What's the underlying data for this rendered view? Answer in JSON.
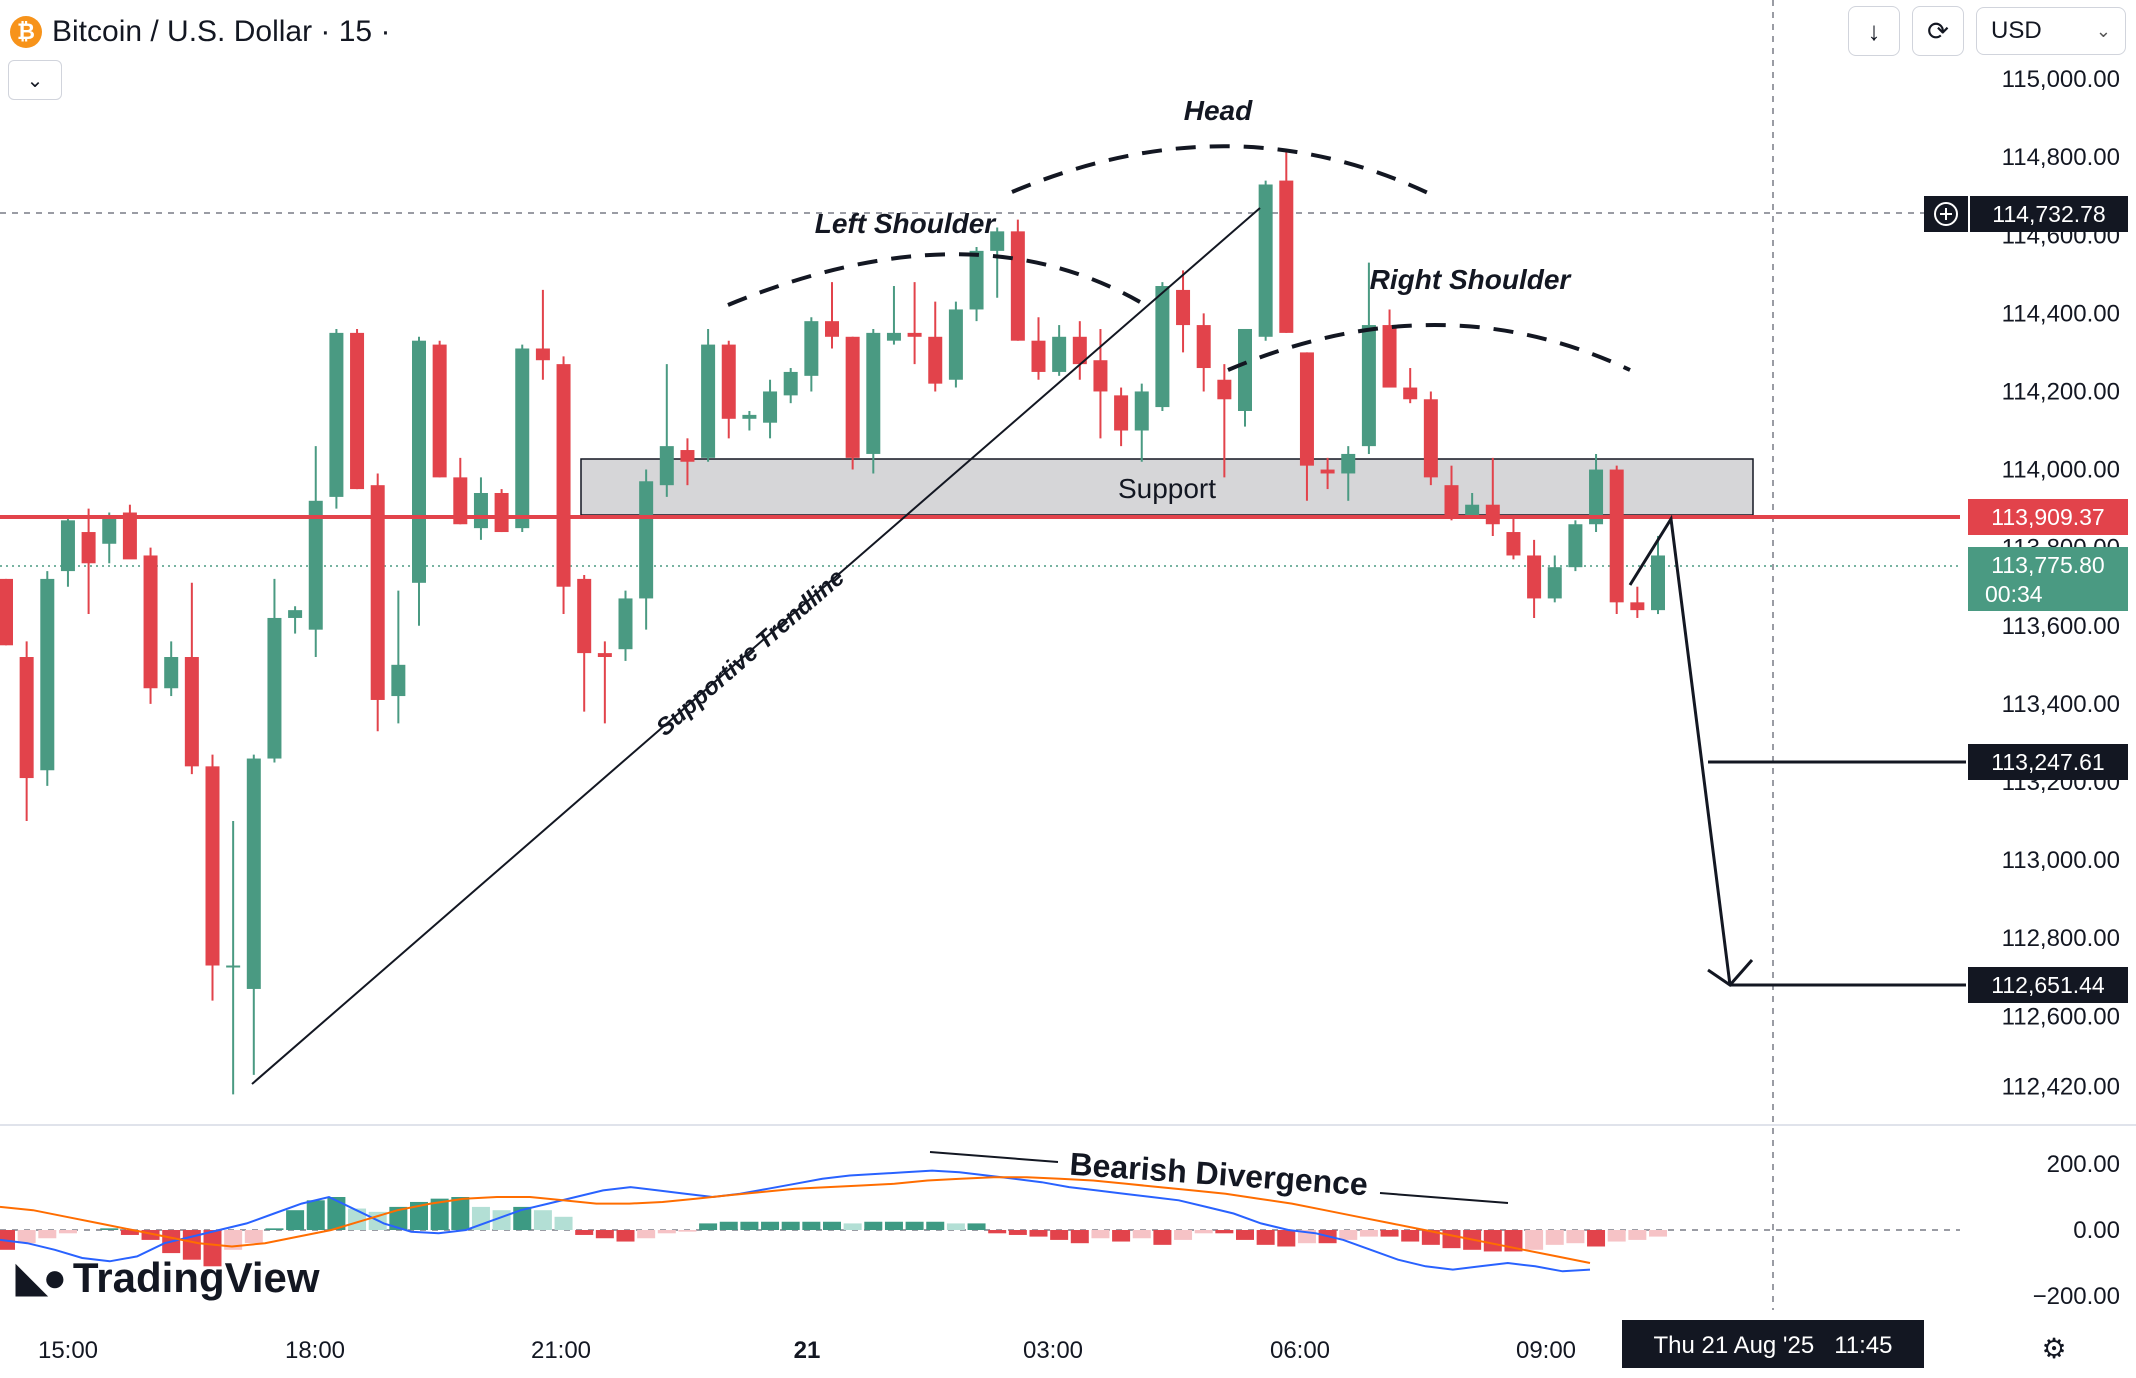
{
  "header": {
    "symbol_title": "Bitcoin / U.S. Dollar · 15 ·",
    "currency": "USD",
    "icons": [
      "bitcoin-icon",
      "chevron-down-icon",
      "arrow-down-icon",
      "refresh-icon",
      "gear-icon",
      "crosshair-plus-icon"
    ]
  },
  "logo": {
    "text": "TradingView"
  },
  "chart_data": [
    {
      "type": "candlestick",
      "title": "",
      "y_ticks": [
        "115,000.00",
        "114,800.00",
        "114,600.00",
        "114,400.00",
        "114,200.00",
        "114,000.00",
        "113,800.00",
        "113,600.00",
        "113,400.00",
        "113,200.00",
        "113,000.00",
        "112,800.00",
        "112,600.00",
        "112,420.00"
      ],
      "x_ticks": [
        "15:00",
        "18:00",
        "21:00",
        "21",
        "03:00",
        "06:00",
        "09:00"
      ],
      "ylim": [
        112360,
        115100
      ],
      "candles": [
        {
          "o": 113720,
          "h": 113720,
          "l": 113550,
          "c": 113550
        },
        {
          "o": 113520,
          "h": 113560,
          "l": 113100,
          "c": 113210
        },
        {
          "o": 113230,
          "h": 113740,
          "l": 113190,
          "c": 113720
        },
        {
          "o": 113740,
          "h": 113880,
          "l": 113700,
          "c": 113870
        },
        {
          "o": 113840,
          "h": 113900,
          "l": 113630,
          "c": 113760
        },
        {
          "o": 113810,
          "h": 113890,
          "l": 113760,
          "c": 113880
        },
        {
          "o": 113890,
          "h": 113910,
          "l": 113790,
          "c": 113770
        },
        {
          "o": 113780,
          "h": 113800,
          "l": 113400,
          "c": 113440
        },
        {
          "o": 113440,
          "h": 113560,
          "l": 113420,
          "c": 113520
        },
        {
          "o": 113520,
          "h": 113710,
          "l": 113220,
          "c": 113240
        },
        {
          "o": 113240,
          "h": 113270,
          "l": 112640,
          "c": 112730
        },
        {
          "o": 112730,
          "h": 113100,
          "l": 112400,
          "c": 112730
        },
        {
          "o": 112670,
          "h": 113270,
          "l": 112450,
          "c": 113260
        },
        {
          "o": 113260,
          "h": 113720,
          "l": 113250,
          "c": 113620
        },
        {
          "o": 113620,
          "h": 113650,
          "l": 113580,
          "c": 113640
        },
        {
          "o": 113590,
          "h": 114060,
          "l": 113520,
          "c": 113920
        },
        {
          "o": 113930,
          "h": 114360,
          "l": 113900,
          "c": 114350
        },
        {
          "o": 114350,
          "h": 114360,
          "l": 113950,
          "c": 113950
        },
        {
          "o": 113960,
          "h": 113990,
          "l": 113330,
          "c": 113410
        },
        {
          "o": 113420,
          "h": 113690,
          "l": 113350,
          "c": 113500
        },
        {
          "o": 113710,
          "h": 114340,
          "l": 113600,
          "c": 114330
        },
        {
          "o": 114320,
          "h": 114330,
          "l": 113980,
          "c": 113980
        },
        {
          "o": 113980,
          "h": 114030,
          "l": 113860,
          "c": 113860
        },
        {
          "o": 113850,
          "h": 113980,
          "l": 113820,
          "c": 113940
        },
        {
          "o": 113940,
          "h": 113950,
          "l": 113840,
          "c": 113840
        },
        {
          "o": 113850,
          "h": 114320,
          "l": 113840,
          "c": 114310
        },
        {
          "o": 114310,
          "h": 114460,
          "l": 114230,
          "c": 114280
        },
        {
          "o": 114270,
          "h": 114290,
          "l": 113630,
          "c": 113700
        },
        {
          "o": 113720,
          "h": 113730,
          "l": 113380,
          "c": 113530
        },
        {
          "o": 113530,
          "h": 113560,
          "l": 113350,
          "c": 113520
        },
        {
          "o": 113540,
          "h": 113690,
          "l": 113510,
          "c": 113670
        },
        {
          "o": 113670,
          "h": 114000,
          "l": 113590,
          "c": 113970
        },
        {
          "o": 113960,
          "h": 114270,
          "l": 113930,
          "c": 114060
        },
        {
          "o": 114050,
          "h": 114080,
          "l": 113960,
          "c": 114020
        },
        {
          "o": 114030,
          "h": 114360,
          "l": 114020,
          "c": 114320
        },
        {
          "o": 114320,
          "h": 114330,
          "l": 114080,
          "c": 114130
        },
        {
          "o": 114130,
          "h": 114150,
          "l": 114100,
          "c": 114140
        },
        {
          "o": 114120,
          "h": 114230,
          "l": 114080,
          "c": 114200
        },
        {
          "o": 114190,
          "h": 114260,
          "l": 114170,
          "c": 114250
        },
        {
          "o": 114240,
          "h": 114390,
          "l": 114200,
          "c": 114380
        },
        {
          "o": 114380,
          "h": 114480,
          "l": 114310,
          "c": 114340
        },
        {
          "o": 114340,
          "h": 114340,
          "l": 114000,
          "c": 114030
        },
        {
          "o": 114040,
          "h": 114360,
          "l": 113990,
          "c": 114350
        },
        {
          "o": 114330,
          "h": 114470,
          "l": 114320,
          "c": 114350
        },
        {
          "o": 114350,
          "h": 114480,
          "l": 114270,
          "c": 114340
        },
        {
          "o": 114340,
          "h": 114430,
          "l": 114200,
          "c": 114220
        },
        {
          "o": 114230,
          "h": 114430,
          "l": 114210,
          "c": 114410
        },
        {
          "o": 114410,
          "h": 114570,
          "l": 114380,
          "c": 114560
        },
        {
          "o": 114560,
          "h": 114620,
          "l": 114440,
          "c": 114610
        },
        {
          "o": 114610,
          "h": 114640,
          "l": 114330,
          "c": 114330
        },
        {
          "o": 114330,
          "h": 114390,
          "l": 114230,
          "c": 114250
        },
        {
          "o": 114250,
          "h": 114370,
          "l": 114240,
          "c": 114340
        },
        {
          "o": 114340,
          "h": 114380,
          "l": 114230,
          "c": 114270
        },
        {
          "o": 114280,
          "h": 114360,
          "l": 114080,
          "c": 114200
        },
        {
          "o": 114190,
          "h": 114210,
          "l": 114060,
          "c": 114100
        },
        {
          "o": 114100,
          "h": 114220,
          "l": 114020,
          "c": 114200
        },
        {
          "o": 114160,
          "h": 114480,
          "l": 114150,
          "c": 114470
        },
        {
          "o": 114460,
          "h": 114510,
          "l": 114300,
          "c": 114370
        },
        {
          "o": 114370,
          "h": 114400,
          "l": 114200,
          "c": 114260
        },
        {
          "o": 114230,
          "h": 114270,
          "l": 113980,
          "c": 114180
        },
        {
          "o": 114150,
          "h": 114350,
          "l": 114110,
          "c": 114360
        },
        {
          "o": 114340,
          "h": 114740,
          "l": 114330,
          "c": 114730
        },
        {
          "o": 114740,
          "h": 114820,
          "l": 114350,
          "c": 114350
        },
        {
          "o": 114300,
          "h": 114300,
          "l": 113920,
          "c": 114010
        },
        {
          "o": 114000,
          "h": 114030,
          "l": 113950,
          "c": 113990
        },
        {
          "o": 113990,
          "h": 114060,
          "l": 113920,
          "c": 114040
        },
        {
          "o": 114060,
          "h": 114530,
          "l": 114040,
          "c": 114370
        },
        {
          "o": 114370,
          "h": 114410,
          "l": 114210,
          "c": 114210
        },
        {
          "o": 114210,
          "h": 114260,
          "l": 114170,
          "c": 114180
        },
        {
          "o": 114180,
          "h": 114200,
          "l": 113960,
          "c": 113980
        },
        {
          "o": 113960,
          "h": 114010,
          "l": 113870,
          "c": 113880
        },
        {
          "o": 113880,
          "h": 113940,
          "l": 113880,
          "c": 113910
        },
        {
          "o": 113910,
          "h": 114030,
          "l": 113830,
          "c": 113860
        },
        {
          "o": 113840,
          "h": 113880,
          "l": 113770,
          "c": 113780
        },
        {
          "o": 113780,
          "h": 113820,
          "l": 113620,
          "c": 113670
        },
        {
          "o": 113670,
          "h": 113780,
          "l": 113660,
          "c": 113750
        },
        {
          "o": 113750,
          "h": 113870,
          "l": 113740,
          "c": 113860
        },
        {
          "o": 113860,
          "h": 114040,
          "l": 113840,
          "c": 114000
        },
        {
          "o": 114000,
          "h": 114010,
          "l": 113630,
          "c": 113660
        },
        {
          "o": 113660,
          "h": 113700,
          "l": 113620,
          "c": 113640
        },
        {
          "o": 113640,
          "h": 113830,
          "l": 113630,
          "c": 113780
        }
      ],
      "price_labels": {
        "crosshair": "114,732.78",
        "red_level": "113,909.37",
        "current_price": "113,775.80",
        "countdown": "00:34",
        "target_1": "113,247.61",
        "target_2": "112,651.44",
        "date_label": "Thu 21 Aug '25   11:45"
      },
      "annotations": {
        "head": "Head",
        "left_shoulder": "Left Shoulder",
        "right_shoulder": "Right Shoulder",
        "support": "Support",
        "trendline": "Supportive Trendline"
      },
      "colors": {
        "up": "#4a9a82",
        "down": "#e2434b",
        "accent_red": "#e2434b",
        "macd": "#2962ff",
        "signal": "#ff6d00"
      }
    },
    {
      "type": "macd",
      "y_ticks": [
        "200.00",
        "0.00",
        "−200.00"
      ],
      "ylim": [
        -250,
        250
      ],
      "annotation": "Bearish Divergence",
      "histogram": [
        -60,
        -40,
        -25,
        -10,
        0,
        5,
        -15,
        -30,
        -70,
        -90,
        -110,
        -60,
        -40,
        5,
        60,
        90,
        100,
        65,
        55,
        70,
        85,
        95,
        100,
        70,
        60,
        70,
        60,
        40,
        -15,
        -25,
        -35,
        -25,
        -10,
        -5,
        20,
        25,
        25,
        25,
        25,
        25,
        25,
        20,
        25,
        25,
        25,
        25,
        20,
        20,
        -10,
        -15,
        -20,
        -30,
        -40,
        -25,
        -35,
        -25,
        -45,
        -30,
        -10,
        -10,
        -30,
        -45,
        -50,
        -40,
        -40,
        -30,
        -20,
        -20,
        -35,
        -45,
        -55,
        -60,
        -65,
        -65,
        -60,
        -45,
        -40,
        -50,
        -35,
        -30,
        -20
      ],
      "macd": [
        -30,
        -40,
        -60,
        -85,
        -95,
        -80,
        -40,
        -20,
        0,
        20,
        50,
        80,
        100,
        60,
        20,
        -5,
        -10,
        0,
        30,
        60,
        80,
        100,
        120,
        130,
        120,
        110,
        100,
        110,
        125,
        140,
        155,
        165,
        170,
        175,
        180,
        175,
        165,
        155,
        145,
        130,
        120,
        110,
        100,
        90,
        70,
        50,
        20,
        0,
        -10,
        -30,
        -60,
        -90,
        -110,
        -120,
        -110,
        -100,
        -110,
        -125,
        -120
      ],
      "signal": [
        70,
        60,
        40,
        20,
        0,
        -20,
        -40,
        -50,
        -40,
        -20,
        0,
        30,
        60,
        80,
        95,
        100,
        100,
        90,
        80,
        80,
        85,
        95,
        105,
        115,
        125,
        130,
        135,
        140,
        150,
        155,
        160,
        160,
        155,
        150,
        140,
        130,
        120,
        110,
        95,
        80,
        60,
        40,
        20,
        0,
        -20,
        -40,
        -60,
        -80,
        -100
      ]
    }
  ]
}
